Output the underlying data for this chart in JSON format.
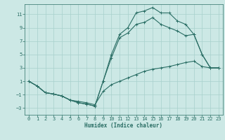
{
  "xlabel": "Humidex (Indice chaleur)",
  "bg_color": "#cce8e5",
  "grid_color": "#a8d0cc",
  "line_color": "#2a6e65",
  "xlim": [
    -0.5,
    23.5
  ],
  "ylim": [
    -4.0,
    12.5
  ],
  "xticks": [
    0,
    1,
    2,
    3,
    4,
    5,
    6,
    7,
    8,
    9,
    10,
    11,
    12,
    13,
    14,
    15,
    16,
    17,
    18,
    19,
    20,
    21,
    22,
    23
  ],
  "yticks": [
    -3,
    -1,
    1,
    3,
    5,
    7,
    9,
    11
  ],
  "line1_x": [
    0,
    1,
    2,
    3,
    4,
    5,
    6,
    7,
    8,
    9,
    10,
    11,
    12,
    13,
    14,
    15,
    16,
    17,
    18,
    19,
    20,
    21,
    22,
    23
  ],
  "line1_y": [
    1.0,
    0.3,
    -0.7,
    -0.9,
    -1.2,
    -1.8,
    -2.2,
    -2.4,
    -2.7,
    1.0,
    5.0,
    8.0,
    9.0,
    11.2,
    11.5,
    12.0,
    11.2,
    11.2,
    10.0,
    9.5,
    8.0,
    5.0,
    3.0,
    3.0
  ],
  "line2_x": [
    0,
    1,
    2,
    3,
    4,
    5,
    6,
    7,
    8,
    9,
    10,
    11,
    12,
    13,
    14,
    15,
    16,
    17,
    18,
    19,
    20,
    21,
    22,
    23
  ],
  "line2_y": [
    1.0,
    0.3,
    -0.7,
    -0.9,
    -1.2,
    -1.8,
    -2.2,
    -2.4,
    -2.7,
    1.0,
    4.5,
    7.5,
    8.2,
    9.5,
    9.8,
    10.5,
    9.5,
    9.0,
    8.5,
    7.8,
    8.0,
    5.0,
    3.0,
    3.0
  ],
  "line3_x": [
    0,
    1,
    2,
    3,
    4,
    5,
    6,
    7,
    8,
    9,
    10,
    11,
    12,
    13,
    14,
    15,
    16,
    17,
    18,
    19,
    20,
    21,
    22,
    23
  ],
  "line3_y": [
    1.0,
    0.3,
    -0.7,
    -0.9,
    -1.2,
    -1.8,
    -2.0,
    -2.2,
    -2.5,
    -0.5,
    0.5,
    1.0,
    1.5,
    2.0,
    2.5,
    2.8,
    3.0,
    3.2,
    3.5,
    3.8,
    4.0,
    3.2,
    3.0,
    3.0
  ]
}
